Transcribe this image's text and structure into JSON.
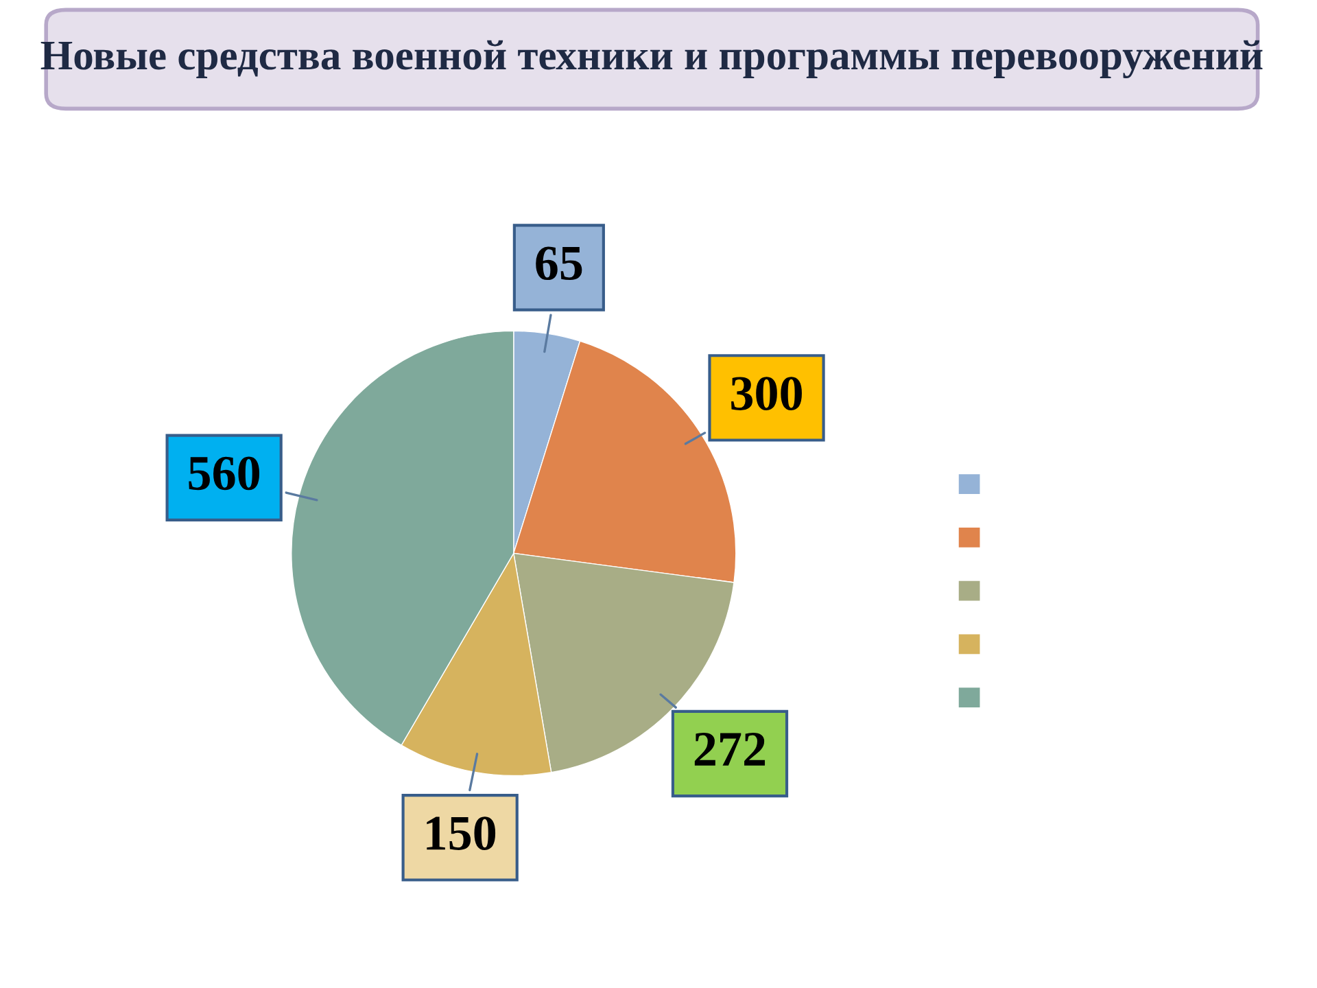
{
  "chart_data": {
    "type": "pie",
    "title": "Новые средства военной техники и программы перевооружений",
    "categories": [
      null,
      null,
      null,
      null,
      null
    ],
    "values": [
      65,
      300,
      272,
      150,
      560
    ],
    "colors": [
      "#95b3d7",
      "#e0844c",
      "#a8ad86",
      "#d6b35e",
      "#7fa99b"
    ],
    "data_labels": true
  }
}
